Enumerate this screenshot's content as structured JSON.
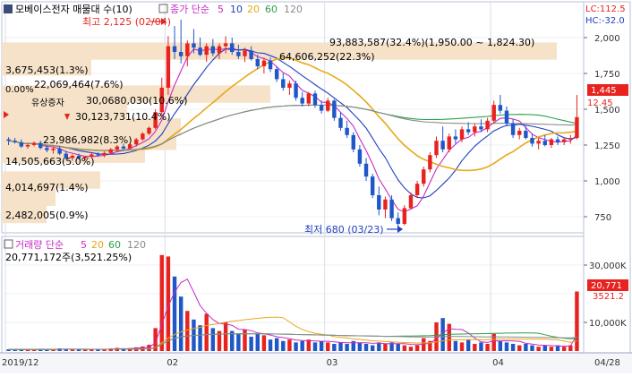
{
  "chart_title": "모베이스전자 매물대 수(10)",
  "price_legend": {
    "label": "종가 단순",
    "periods": [
      "5",
      "10",
      "20",
      "60",
      "120"
    ]
  },
  "volume_legend": {
    "label": "거래량 단순",
    "periods": [
      "5",
      "20",
      "60",
      "120"
    ]
  },
  "colors": {
    "up": "#e8231f",
    "down": "#1f57c8",
    "ma5": "#c72ac7",
    "ma10": "#1f3fbf",
    "ma20": "#e8a818",
    "ma60": "#2ea04a",
    "ma120": "#8a8a8a",
    "profile": "#f6e2c8",
    "frame": "#b8c2d6"
  },
  "top_right": {
    "lc": "LC:112.5",
    "hc": "HC:-32.0",
    "hc_up": "12.45"
  },
  "annotations": {
    "high": "최고 2,125 (02/04)",
    "low": "최저 680 (03/23)",
    "pct_top": "0.00%",
    "event": "유상증자",
    "volume_value": "20,771,172주(3,521.25%)"
  },
  "volume_profile": [
    {
      "label": "93,883,587(32.4%)(1,950.00 ~ 1,824.30)"
    },
    {
      "label": "64,606,252(22.3%)"
    },
    {
      "label": "3,675,453(1.3%)"
    },
    {
      "label": "22,069,464(7.6%)"
    },
    {
      "label": "30,0680,030(10.6%)"
    },
    {
      "label": "30,123,731(10.4%)"
    },
    {
      "label": "23,986,982(8.3%)"
    },
    {
      "label": "14,505,663(5.0%)"
    },
    {
      "label": "4,014,697(1.4%)"
    },
    {
      "label": "2,482,005(0.9%)"
    }
  ],
  "price_axis": [
    "2,000",
    "1,750",
    "1,500",
    "1,250",
    "1,000",
    "750"
  ],
  "price_badge": "1,445",
  "volume_axis": [
    "30,000K",
    "10,000K"
  ],
  "volume_badge": "20,771",
  "volume_badge_sub": "3521.2",
  "x_axis": [
    "2019/12",
    "02",
    "03",
    "04",
    "04/28"
  ],
  "chart_data": {
    "type": "candlestick",
    "candles": [
      [
        1290,
        1305,
        1250,
        1280
      ],
      [
        1280,
        1300,
        1260,
        1270
      ],
      [
        1270,
        1290,
        1230,
        1240
      ],
      [
        1240,
        1265,
        1225,
        1250
      ],
      [
        1250,
        1275,
        1240,
        1265
      ],
      [
        1265,
        1280,
        1220,
        1230
      ],
      [
        1230,
        1250,
        1200,
        1215
      ],
      [
        1215,
        1235,
        1190,
        1225
      ],
      [
        1225,
        1245,
        1180,
        1190
      ],
      [
        1190,
        1210,
        1150,
        1160
      ],
      [
        1160,
        1185,
        1140,
        1175
      ],
      [
        1175,
        1190,
        1150,
        1160
      ],
      [
        1160,
        1175,
        1145,
        1170
      ],
      [
        1170,
        1195,
        1160,
        1185
      ],
      [
        1185,
        1200,
        1170,
        1180
      ],
      [
        1180,
        1205,
        1165,
        1195
      ],
      [
        1195,
        1230,
        1185,
        1220
      ],
      [
        1220,
        1250,
        1205,
        1240
      ],
      [
        1240,
        1260,
        1210,
        1225
      ],
      [
        1225,
        1265,
        1220,
        1255
      ],
      [
        1255,
        1300,
        1240,
        1290
      ],
      [
        1290,
        1340,
        1280,
        1330
      ],
      [
        1330,
        1380,
        1320,
        1370
      ],
      [
        1370,
        1500,
        1360,
        1480
      ],
      [
        1480,
        1720,
        1450,
        1650
      ],
      [
        1650,
        2010,
        1600,
        1940
      ],
      [
        1940,
        2080,
        1850,
        1900
      ],
      [
        1900,
        2125,
        1820,
        1870
      ],
      [
        1870,
        1980,
        1800,
        1960
      ],
      [
        1960,
        2060,
        1890,
        1930
      ],
      [
        1930,
        2000,
        1870,
        1880
      ],
      [
        1880,
        1960,
        1830,
        1940
      ],
      [
        1940,
        1990,
        1870,
        1890
      ],
      [
        1890,
        1960,
        1850,
        1940
      ],
      [
        1940,
        2010,
        1890,
        1960
      ],
      [
        1960,
        2000,
        1880,
        1900
      ],
      [
        1900,
        1950,
        1850,
        1870
      ],
      [
        1870,
        1930,
        1830,
        1910
      ],
      [
        1910,
        1940,
        1840,
        1850
      ],
      [
        1850,
        1880,
        1780,
        1800
      ],
      [
        1800,
        1860,
        1750,
        1840
      ],
      [
        1840,
        1860,
        1760,
        1780
      ],
      [
        1780,
        1800,
        1690,
        1710
      ],
      [
        1710,
        1750,
        1630,
        1650
      ],
      [
        1650,
        1700,
        1600,
        1680
      ],
      [
        1680,
        1700,
        1560,
        1580
      ],
      [
        1580,
        1620,
        1520,
        1540
      ],
      [
        1540,
        1620,
        1520,
        1610
      ],
      [
        1610,
        1630,
        1510,
        1530
      ],
      [
        1530,
        1560,
        1470,
        1490
      ],
      [
        1490,
        1580,
        1480,
        1560
      ],
      [
        1560,
        1570,
        1420,
        1440
      ],
      [
        1440,
        1480,
        1350,
        1370
      ],
      [
        1370,
        1420,
        1300,
        1320
      ],
      [
        1320,
        1340,
        1200,
        1220
      ],
      [
        1220,
        1250,
        1100,
        1120
      ],
      [
        1120,
        1160,
        1000,
        1030
      ],
      [
        1030,
        1050,
        880,
        900
      ],
      [
        900,
        960,
        760,
        800
      ],
      [
        800,
        890,
        740,
        870
      ],
      [
        870,
        900,
        720,
        740
      ],
      [
        740,
        780,
        680,
        700
      ],
      [
        700,
        830,
        690,
        810
      ],
      [
        810,
        920,
        800,
        900
      ],
      [
        900,
        1000,
        880,
        980
      ],
      [
        980,
        1100,
        960,
        1080
      ],
      [
        1080,
        1200,
        1060,
        1180
      ],
      [
        1180,
        1310,
        1160,
        1280
      ],
      [
        1280,
        1380,
        1200,
        1220
      ],
      [
        1220,
        1330,
        1200,
        1310
      ],
      [
        1310,
        1360,
        1260,
        1290
      ],
      [
        1290,
        1380,
        1270,
        1360
      ],
      [
        1360,
        1410,
        1320,
        1340
      ],
      [
        1340,
        1400,
        1310,
        1380
      ],
      [
        1380,
        1430,
        1340,
        1360
      ],
      [
        1360,
        1440,
        1340,
        1420
      ],
      [
        1420,
        1560,
        1400,
        1530
      ],
      [
        1530,
        1600,
        1470,
        1490
      ],
      [
        1490,
        1520,
        1380,
        1400
      ],
      [
        1400,
        1430,
        1300,
        1320
      ],
      [
        1320,
        1370,
        1290,
        1350
      ],
      [
        1350,
        1380,
        1290,
        1300
      ],
      [
        1300,
        1330,
        1240,
        1260
      ],
      [
        1260,
        1300,
        1220,
        1280
      ],
      [
        1280,
        1320,
        1240,
        1250
      ],
      [
        1250,
        1300,
        1230,
        1290
      ],
      [
        1290,
        1310,
        1250,
        1270
      ],
      [
        1270,
        1300,
        1250,
        1290
      ],
      [
        1290,
        1320,
        1260,
        1300
      ],
      [
        1300,
        1600,
        1290,
        1445
      ]
    ],
    "volumes_k": [
      600,
      500,
      700,
      450,
      400,
      800,
      650,
      500,
      900,
      700,
      550,
      600,
      500,
      700,
      650,
      600,
      900,
      1100,
      800,
      1000,
      1300,
      1600,
      2200,
      8000,
      33500,
      33000,
      26000,
      19000,
      14000,
      11000,
      9000,
      13000,
      8000,
      7000,
      10000,
      7000,
      6000,
      7500,
      5000,
      6000,
      5500,
      4000,
      4500,
      3500,
      4000,
      3000,
      3500,
      4000,
      3000,
      3500,
      3000,
      2500,
      3000,
      2500,
      3500,
      3000,
      2500,
      2000,
      3000,
      2500,
      3000,
      2500,
      2000,
      1500,
      2000,
      4500,
      3500,
      10000,
      11500,
      9500,
      3500,
      3000,
      4000,
      2500,
      3000,
      2500,
      6000,
      3500,
      3000,
      2500,
      2000,
      2500,
      2000,
      1500,
      2000,
      1500,
      2000,
      1500,
      2000,
      20771
    ],
    "price_range": [
      650,
      2125
    ]
  }
}
